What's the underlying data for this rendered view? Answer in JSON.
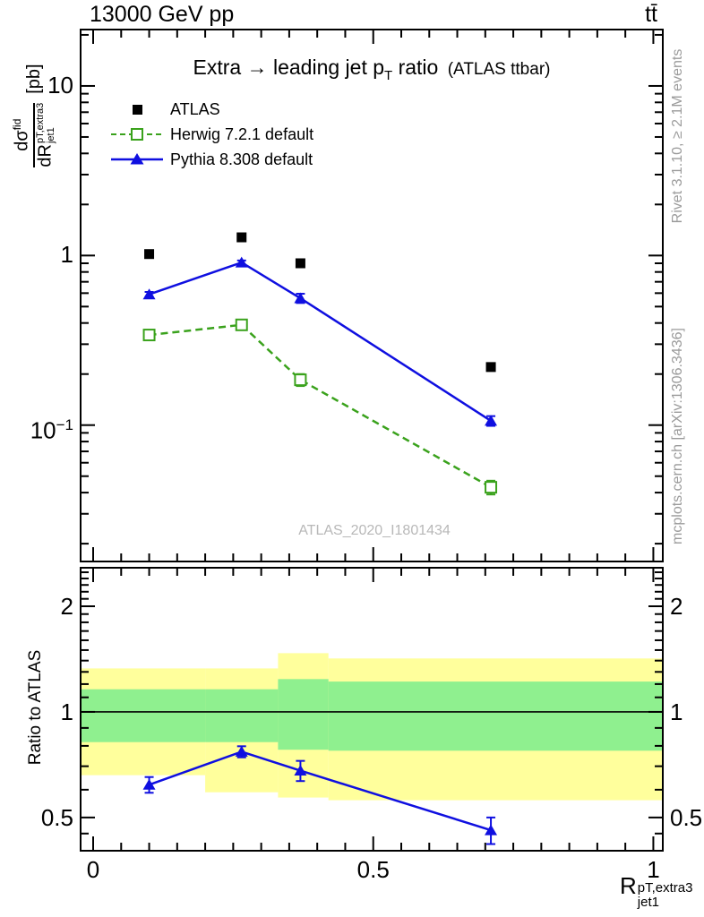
{
  "header": {
    "left": "13000 GeV pp",
    "right": "tt̄"
  },
  "side_notes": {
    "top": "Rivet 3.1.10, ≥ 2.1M events",
    "bottom": "mcplots.cern.ch [arXiv:1306.3436]"
  },
  "watermark": "ATLAS_2020_I1801434",
  "colors": {
    "pythia": "#0f0fe0",
    "herwig": "#3aa21c",
    "band_yellow": "#ffff9c",
    "band_green": "#8ff08f",
    "side_note_gray": "#9b9b9b",
    "watermark_gray": "#b8b8b8"
  },
  "chart_data": [
    {
      "id": "main",
      "type": "scatter",
      "title": {
        "pre": "Extra → leading jet p",
        "psub": "T",
        "post": " ratio",
        "note": "(ATLAS ttbar)"
      },
      "ylabel": {
        "num": "dσ",
        "num_sup": "fid",
        "den": "dR",
        "den_sup": "pT,extra3",
        "den_sub": "jet1",
        "unit": "[pb]"
      },
      "xlim": [
        -0.0224,
        1.0169
      ],
      "ylog": true,
      "ylim": [
        0.0157,
        21.5
      ],
      "x": [
        0.1,
        0.265,
        0.37,
        0.71
      ],
      "bin_edges": [
        0,
        0.2,
        0.33,
        0.42,
        1.0
      ],
      "series": [
        {
          "name": "ATLAS",
          "marker": "filled-square",
          "color": "#000000",
          "y": [
            1.02,
            1.28,
            0.9,
            0.22
          ],
          "yerr": [
            0,
            0,
            0,
            0
          ]
        },
        {
          "name": "Herwig 7.2.1 default",
          "marker": "open-square",
          "line": "dashed",
          "color": "#3aa21c",
          "y": [
            0.34,
            0.39,
            0.185,
            0.043
          ],
          "yerr": [
            0.012,
            0.015,
            0.015,
            0.004
          ]
        },
        {
          "name": "Pythia 8.308 default",
          "marker": "filled-triangle",
          "line": "solid",
          "color": "#0f0fe0",
          "y": [
            0.59,
            0.91,
            0.56,
            0.106
          ],
          "yerr": [
            0.02,
            0.025,
            0.035,
            0.007
          ]
        }
      ],
      "yticks": [
        {
          "v": 10,
          "base": "10",
          "sup": ""
        },
        {
          "v": 1,
          "base": "1",
          "sup": ""
        },
        {
          "v": 0.1,
          "base": "10",
          "sup": "−1"
        }
      ],
      "xticks": [
        {
          "v": 0,
          "label": "0"
        },
        {
          "v": 0.5,
          "label": "0.5"
        },
        {
          "v": 1,
          "label": "1"
        }
      ]
    },
    {
      "id": "ratio",
      "type": "line",
      "ylabel": "Ratio to ATLAS",
      "xlabel": {
        "base": "R",
        "sup": "pT,extra3",
        "sub": "jet1"
      },
      "ylog": true,
      "ylim": [
        0.402,
        2.575
      ],
      "reference_line": 1,
      "bands": {
        "edges": [
          0,
          0.2,
          0.33,
          0.42,
          1.0
        ],
        "yellow": [
          [
            0.66,
            1.33
          ],
          [
            0.59,
            1.33
          ],
          [
            0.57,
            1.47
          ],
          [
            0.56,
            1.42
          ]
        ],
        "green": [
          [
            0.82,
            1.16
          ],
          [
            0.82,
            1.16
          ],
          [
            0.78,
            1.24
          ],
          [
            0.775,
            1.22
          ]
        ]
      },
      "series": [
        {
          "name": "Pythia 8.308 default / ATLAS",
          "marker": "filled-triangle",
          "line": "solid",
          "color": "#0f0fe0",
          "x": [
            0.1,
            0.265,
            0.37,
            0.71
          ],
          "y": [
            0.62,
            0.77,
            0.68,
            0.46
          ],
          "yerr": [
            0.032,
            0.028,
            0.045,
            0.04
          ]
        }
      ],
      "yticks": [
        {
          "v": 0.5,
          "label": "0.5"
        },
        {
          "v": 1,
          "label": "1"
        },
        {
          "v": 2,
          "label": "2"
        }
      ],
      "xticks": [
        {
          "v": 0,
          "label": "0"
        },
        {
          "v": 0.5,
          "label": "0.5"
        },
        {
          "v": 1,
          "label": "1"
        }
      ]
    }
  ]
}
